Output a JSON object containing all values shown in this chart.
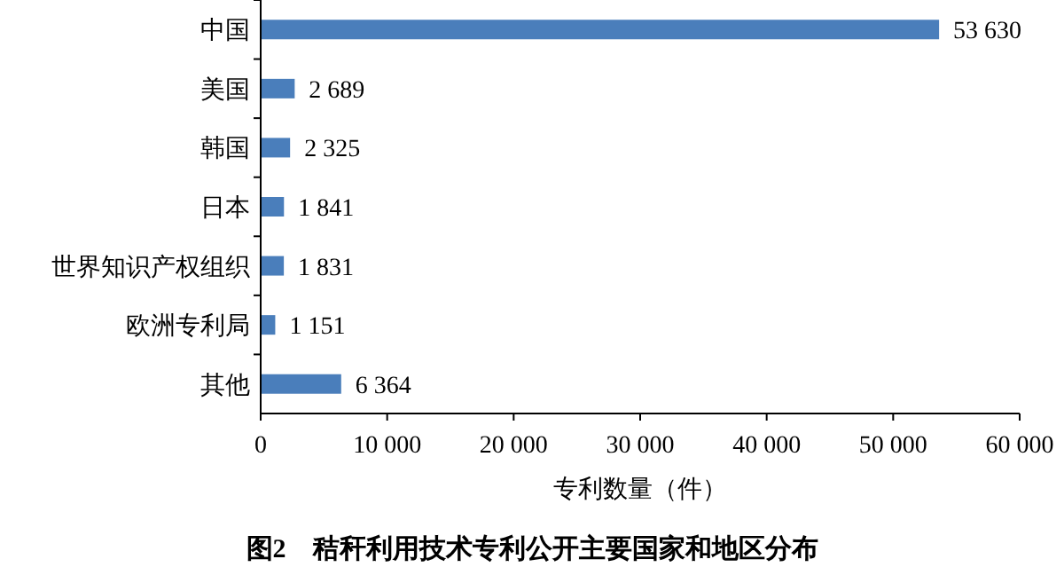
{
  "chart_data": {
    "type": "bar",
    "orientation": "horizontal",
    "title": "图2　秸秆利用技术专利公开主要国家和地区分布",
    "xlabel": "专利数量（件）",
    "categories": [
      "中国",
      "美国",
      "韩国",
      "日本",
      "世界知识产权组织",
      "欧洲专利局",
      "其他"
    ],
    "values": [
      53630,
      2689,
      2325,
      1841,
      1831,
      1151,
      6364
    ],
    "value_labels": [
      "53 630",
      "2 689",
      "2 325",
      "1 841",
      "1 831",
      "1 151",
      "6 364"
    ],
    "color": "#4a7ebb",
    "xlim": [
      0,
      60000
    ],
    "xticks": [
      0,
      {
        "value": 10000,
        "label": "10 000"
      },
      {
        "value": 20000,
        "label": "20 000"
      },
      {
        "value": 30000,
        "label": "30 000"
      },
      {
        "value": 40000,
        "label": "40 000"
      },
      {
        "value": 50000,
        "label": "50 000"
      },
      {
        "value": 60000,
        "label": "60 000"
      }
    ],
    "grid": false
  }
}
